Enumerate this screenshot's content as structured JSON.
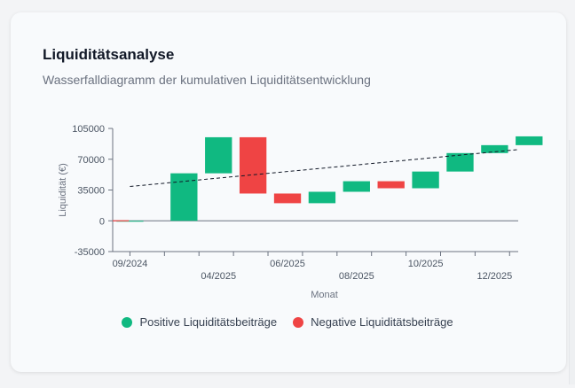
{
  "card": {
    "title": "Liquiditätsanalyse",
    "subtitle": "Wasserfalldiagramm der kumulativen Liquiditätsentwicklung"
  },
  "legend": {
    "positive_label": "Positive Liquiditätsbeiträge",
    "negative_label": "Negative Liquiditätsbeiträge"
  },
  "colors": {
    "positive": "#10b981",
    "negative": "#ef4444",
    "axis": "#6b7280",
    "trend": "#111827"
  },
  "chart_data": {
    "type": "bar",
    "subtype": "waterfall",
    "title": "Liquiditätsanalyse",
    "subtitle": "Wasserfalldiagramm der kumulativen Liquiditätsentwicklung",
    "xlabel": "Monat",
    "ylabel": "Liquidität (€)",
    "ylim": [
      -35000,
      105000
    ],
    "yticks": [
      105000,
      70000,
      35000,
      0,
      -35000
    ],
    "xtick_labels": [
      "09/2024",
      "04/2025",
      "06/2025",
      "08/2025",
      "10/2025",
      "12/2025"
    ],
    "bars": [
      {
        "start": 0,
        "end": 0
      },
      {
        "start": 0,
        "end": 54000
      },
      {
        "start": 54000,
        "end": 95000
      },
      {
        "start": 95000,
        "end": 31000
      },
      {
        "start": 31000,
        "end": 20000
      },
      {
        "start": 20000,
        "end": 33000
      },
      {
        "start": 33000,
        "end": 45000
      },
      {
        "start": 45000,
        "end": 37000
      },
      {
        "start": 37000,
        "end": 56000
      },
      {
        "start": 56000,
        "end": 77000
      },
      {
        "start": 77000,
        "end": 86000
      },
      {
        "start": 86000,
        "end": 96000
      }
    ],
    "trendline": {
      "from": 39000,
      "to": 81000
    },
    "legend_position": "bottom",
    "grid": false
  }
}
